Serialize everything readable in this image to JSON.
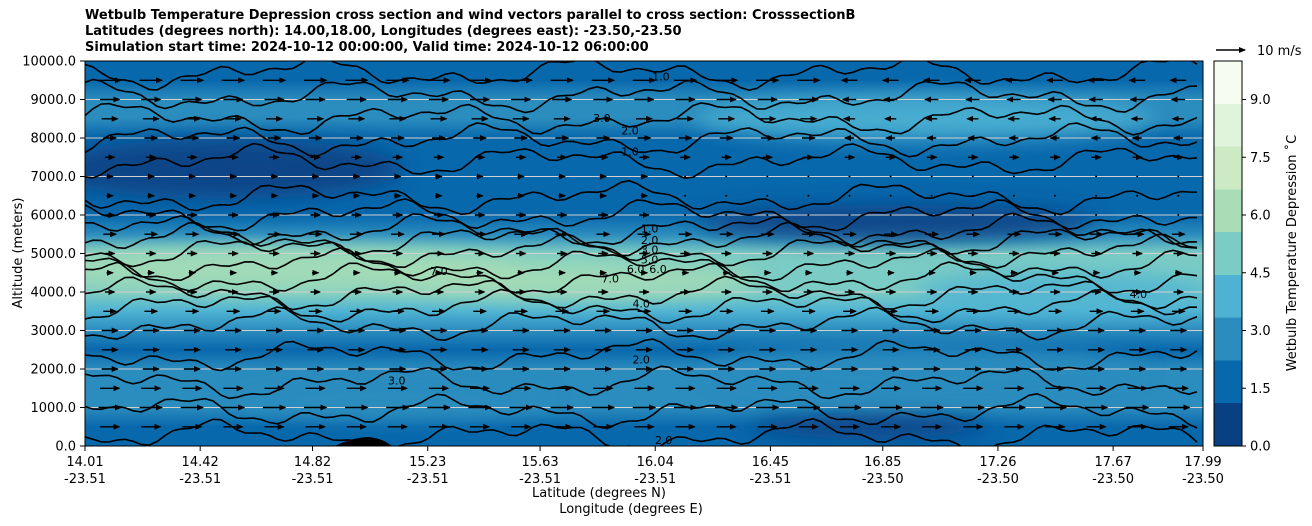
{
  "chart_data": {
    "type": "contour",
    "title_lines": [
      "Wetbulb Temperature Depression cross section and wind vectors parallel to cross section: CrosssectionB",
      "Latitudes (degrees north): 14.00,18.00, Longitudes (degrees east): -23.50,-23.50",
      "Simulation start time: 2024-10-12 00:00:00, Valid time: 2024-10-12 06:00:00"
    ],
    "xlabel_lines": [
      "Latitude (degrees N)",
      "Longitude (degrees E)"
    ],
    "ylabel": "Altitude (meters)",
    "x_ticks": [
      {
        "lat": "14.01",
        "lon": "-23.51"
      },
      {
        "lat": "14.42",
        "lon": "-23.51"
      },
      {
        "lat": "14.82",
        "lon": "-23.51"
      },
      {
        "lat": "15.23",
        "lon": "-23.51"
      },
      {
        "lat": "15.63",
        "lon": "-23.51"
      },
      {
        "lat": "16.04",
        "lon": "-23.51"
      },
      {
        "lat": "16.45",
        "lon": "-23.51"
      },
      {
        "lat": "16.85",
        "lon": "-23.50"
      },
      {
        "lat": "17.26",
        "lon": "-23.50"
      },
      {
        "lat": "17.67",
        "lon": "-23.50"
      },
      {
        "lat": "17.99",
        "lon": "-23.50"
      }
    ],
    "x_tick_values": [
      14.01,
      14.42,
      14.82,
      15.23,
      15.63,
      16.04,
      16.45,
      16.85,
      17.26,
      17.67,
      17.99
    ],
    "xlim": [
      14.01,
      17.99
    ],
    "y_ticks": [
      "0.0",
      "1000.0",
      "2000.0",
      "3000.0",
      "4000.0",
      "5000.0",
      "6000.0",
      "7000.0",
      "8000.0",
      "9000.0",
      "10000.0"
    ],
    "ylim": [
      0,
      10000
    ],
    "grid": "horizontal",
    "colorbar": {
      "label": "Wetbulb Temperature Depression $^\\circ$C",
      "label_display": "Wetbulb Temperature Depression ˚C",
      "ticks": [
        "0.0",
        "1.5",
        "3.0",
        "4.5",
        "6.0",
        "7.5",
        "9.0"
      ],
      "range": [
        0,
        10
      ],
      "colormap": "GnBu_r",
      "colors": [
        "#084081",
        "#0868ac",
        "#2b8cbe",
        "#4eb3d3",
        "#7bccc4",
        "#a8ddb5",
        "#ccebc5",
        "#e0f3db",
        "#f7fcf0"
      ]
    },
    "quiver_key": "10 m/s",
    "contour_levels_labeled": [
      "1.0",
      "2.0",
      "3.0",
      "4.0",
      "5.0",
      "6.0",
      "7.0"
    ],
    "profile": [
      {
        "alt": 0,
        "value": 1.6
      },
      {
        "alt": 500,
        "value": 1.8
      },
      {
        "alt": 1000,
        "value": 2.0
      },
      {
        "alt": 1500,
        "value": 2.4
      },
      {
        "alt": 2000,
        "value": 2.0
      },
      {
        "alt": 2500,
        "value": 1.6
      },
      {
        "alt": 3000,
        "value": 2.4
      },
      {
        "alt": 3500,
        "value": 3.2
      },
      {
        "alt": 4000,
        "value": 4.6
      },
      {
        "alt": 4500,
        "value": 5.6
      },
      {
        "alt": 5000,
        "value": 5.2
      },
      {
        "alt": 5500,
        "value": 3.0
      },
      {
        "alt": 6000,
        "value": 1.4
      },
      {
        "alt": 6500,
        "value": 0.9
      },
      {
        "alt": 7000,
        "value": 0.8
      },
      {
        "alt": 7500,
        "value": 1.0
      },
      {
        "alt": 8000,
        "value": 1.8
      },
      {
        "alt": 8500,
        "value": 2.6
      },
      {
        "alt": 9000,
        "value": 2.2
      },
      {
        "alt": 9500,
        "value": 1.4
      },
      {
        "alt": 10000,
        "value": 1.2
      }
    ],
    "wind_levels": [
      {
        "alt": 500,
        "u": 6
      },
      {
        "alt": 1000,
        "u": 7
      },
      {
        "alt": 1500,
        "u": 6
      },
      {
        "alt": 2000,
        "u": 5
      },
      {
        "alt": 2500,
        "u": 5
      },
      {
        "alt": 3000,
        "u": 5
      },
      {
        "alt": 3500,
        "u": 4
      },
      {
        "alt": 4000,
        "u": 3
      },
      {
        "alt": 4500,
        "u": 2
      },
      {
        "alt": 5000,
        "u": 3
      },
      {
        "alt": 5500,
        "u": 4
      },
      {
        "alt": 6000,
        "u": 3
      },
      {
        "alt": 6500,
        "u": 2
      },
      {
        "alt": 7000,
        "u": 2
      },
      {
        "alt": 7500,
        "u": 3
      },
      {
        "alt": 8000,
        "u": 4
      },
      {
        "alt": 8500,
        "u": 5
      },
      {
        "alt": 9000,
        "u": 6
      },
      {
        "alt": 9500,
        "u": 7
      }
    ]
  }
}
